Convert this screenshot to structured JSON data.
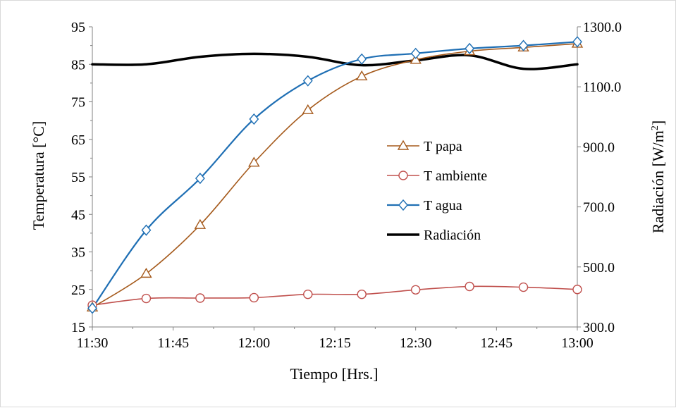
{
  "chart_data": {
    "type": "line",
    "xlabel": "Tiempo [Hrs.]",
    "ylabel_left": "Temperatura [°C]",
    "ylabel_right_base": "Radiación [W/m",
    "ylabel_right_sup": "2",
    "ylabel_right_tail": "]",
    "x_ticks": [
      "11:30",
      "11:45",
      "12:00",
      "12:15",
      "12:30",
      "12:45",
      "13:00"
    ],
    "x_range_minutes": [
      0,
      90
    ],
    "y_left_range": [
      15,
      95
    ],
    "y_left_ticks": [
      "15",
      "25",
      "35",
      "45",
      "55",
      "65",
      "75",
      "85",
      "95"
    ],
    "y_right_range": [
      300,
      1300
    ],
    "y_right_ticks": [
      "300.0",
      "500.0",
      "700.0",
      "900.0",
      "1100.0",
      "1300.0"
    ],
    "x_times": [
      "11:30",
      "11:40",
      "11:50",
      "12:00",
      "12:10",
      "12:20",
      "12:30",
      "12:40",
      "12:50",
      "13:00"
    ],
    "series": [
      {
        "name": "T papa",
        "axis": "left",
        "color": "#a55a1c",
        "marker": "triangle",
        "width": 1.6,
        "values": [
          20.2,
          29.2,
          42.2,
          58.8,
          72.8,
          81.8,
          86.2,
          88.5,
          89.5,
          90.5
        ]
      },
      {
        "name": "T ambiente",
        "axis": "left",
        "color": "#c0504d",
        "marker": "circle",
        "width": 1.6,
        "values": [
          20.8,
          22.6,
          22.7,
          22.8,
          23.7,
          23.7,
          24.9,
          25.8,
          25.6,
          25.0
        ]
      },
      {
        "name": "T agua",
        "axis": "left",
        "color": "#1f6fb4",
        "marker": "diamond",
        "width": 2.2,
        "values": [
          20.0,
          40.8,
          54.6,
          70.4,
          80.6,
          86.4,
          87.9,
          89.2,
          90.0,
          91.0
        ]
      },
      {
        "name": "Radiación",
        "axis": "right",
        "color": "#000000",
        "marker": "none",
        "width": 3.5,
        "values": [
          1175,
          1175,
          1200,
          1210,
          1200,
          1172,
          1188,
          1205,
          1160,
          1175
        ]
      }
    ],
    "legend": "inside-center-right",
    "grid": false
  }
}
